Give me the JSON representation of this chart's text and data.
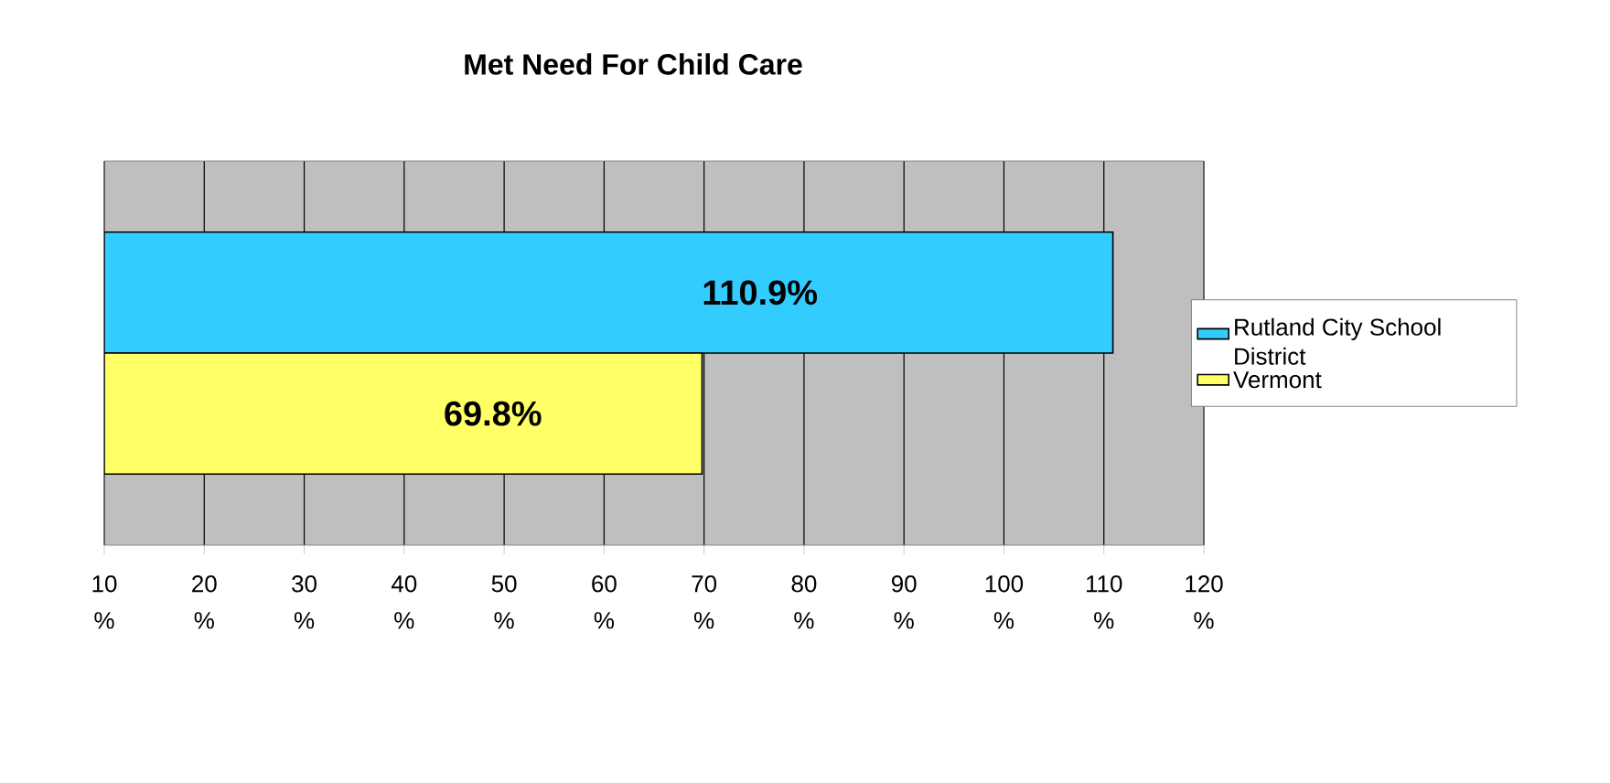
{
  "chart_data": {
    "type": "bar",
    "orientation": "horizontal",
    "title": "Met Need For Child Care",
    "categories": [
      null
    ],
    "series": [
      {
        "name": "Rutland City School District",
        "color": "#33ccff",
        "values": [
          110.9
        ],
        "value_labels": [
          "110.9%"
        ]
      },
      {
        "name": "Vermont",
        "color": "#ffff66",
        "values": [
          69.8
        ],
        "value_labels": [
          "69.8%"
        ]
      }
    ],
    "xlim": [
      10,
      120
    ],
    "xticks": [
      {
        "value": 10,
        "label": "10 %"
      },
      {
        "value": 20,
        "label": "20 %"
      },
      {
        "value": 30,
        "label": "30 %"
      },
      {
        "value": 40,
        "label": "40 %"
      },
      {
        "value": 50,
        "label": "50 %"
      },
      {
        "value": 60,
        "label": "60 %"
      },
      {
        "value": 70,
        "label": "70 %"
      },
      {
        "value": 80,
        "label": "80 %"
      },
      {
        "value": 90,
        "label": "90 %"
      },
      {
        "value": 100,
        "label": "100 %"
      },
      {
        "value": 110,
        "label": "110 %"
      },
      {
        "value": 120,
        "label": "120 %"
      }
    ],
    "grid": "x",
    "legend": "right"
  }
}
